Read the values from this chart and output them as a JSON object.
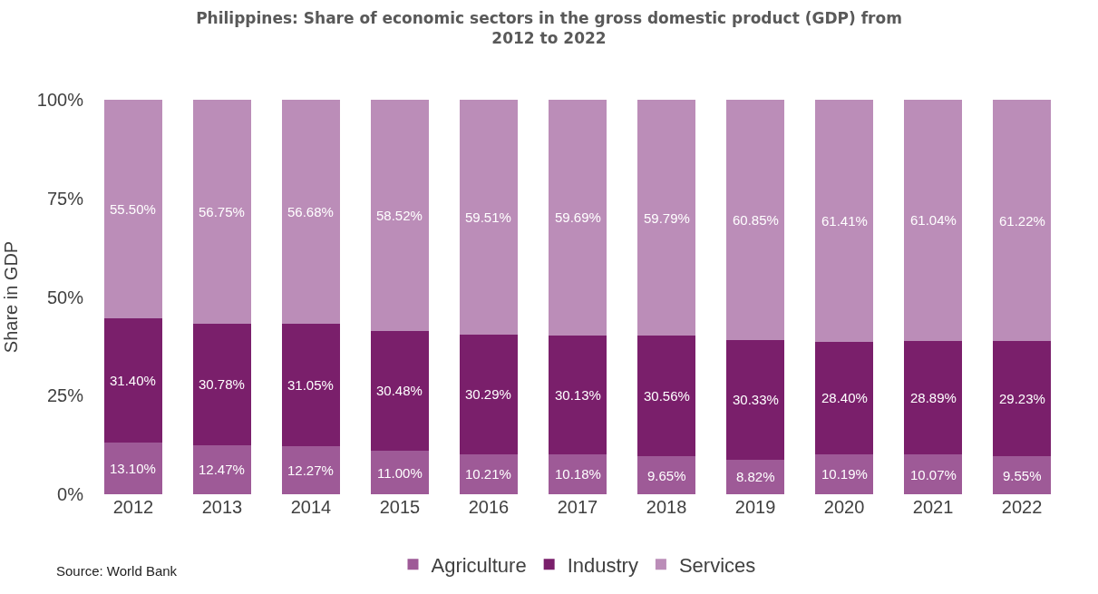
{
  "chart_data": {
    "type": "bar",
    "stacked": true,
    "title": "Philippines: Share of economic sectors in the gross domestic product (GDP) from 2012 to 2022",
    "ylabel": "Share in GDP",
    "categories": [
      "2012",
      "2013",
      "2014",
      "2015",
      "2016",
      "2017",
      "2018",
      "2019",
      "2020",
      "2021",
      "2022"
    ],
    "series": [
      {
        "name": "Agriculture",
        "color": "#9e5a97",
        "values": [
          13.1,
          12.47,
          12.27,
          11.0,
          10.21,
          10.18,
          9.65,
          8.82,
          10.19,
          10.07,
          9.55
        ],
        "value_labels": [
          "13.10%",
          "12.47%",
          "12.27%",
          "11.00%",
          "10.21%",
          "10.18%",
          "9.65%",
          "8.82%",
          "10.19%",
          "10.07%",
          "9.55%"
        ]
      },
      {
        "name": "Industry",
        "color": "#7a1f6b",
        "values": [
          31.4,
          30.78,
          31.05,
          30.48,
          30.29,
          30.13,
          30.56,
          30.33,
          28.4,
          28.89,
          29.23
        ],
        "value_labels": [
          "31.40%",
          "30.78%",
          "31.05%",
          "30.48%",
          "30.29%",
          "30.13%",
          "30.56%",
          "30.33%",
          "28.40%",
          "28.89%",
          "29.23%"
        ]
      },
      {
        "name": "Services",
        "color": "#bb8db8",
        "values": [
          55.5,
          56.75,
          56.68,
          58.52,
          59.51,
          59.69,
          59.79,
          60.85,
          61.41,
          61.04,
          61.22
        ],
        "value_labels": [
          "55.50%",
          "56.75%",
          "56.68%",
          "58.52%",
          "59.51%",
          "59.69%",
          "59.79%",
          "60.85%",
          "61.41%",
          "61.04%",
          "61.22%"
        ]
      }
    ],
    "ylim": [
      0,
      100
    ],
    "yticks": [
      {
        "value": 0,
        "label": "0%"
      },
      {
        "value": 25,
        "label": "25%"
      },
      {
        "value": 50,
        "label": "50%"
      },
      {
        "value": 75,
        "label": "75%"
      },
      {
        "value": 100,
        "label": "100%"
      }
    ],
    "grid": false,
    "legend": "bottom",
    "annotations": [
      "Source: World Bank"
    ]
  }
}
